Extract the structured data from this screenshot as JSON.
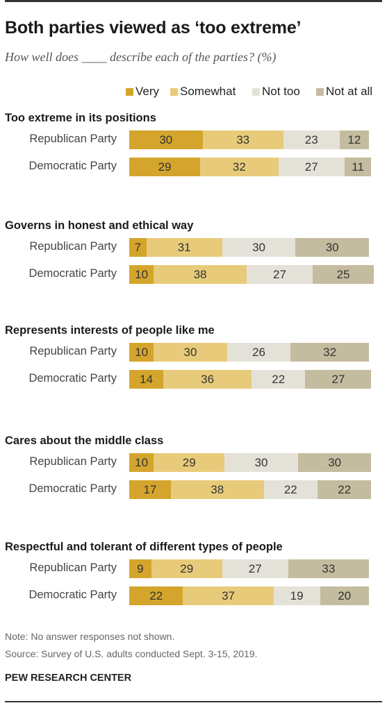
{
  "title": "Both parties viewed as ‘too extreme’",
  "subtitle": "How well does ____ describe each of the parties? (%)",
  "note": "Note: No answer responses not shown.",
  "source": "Source: Survey of U.S. adults conducted Sept. 3-15, 2019.",
  "org": "PEW RESEARCH CENTER",
  "colors": {
    "very": "#d4a52c",
    "somewhat": "#e8cb7a",
    "not_too": "#e4e2d8",
    "not_at_all": "#c4bc9e"
  },
  "chart_data": {
    "type": "bar",
    "orientation": "horizontal",
    "stacked": true,
    "xlim": [
      0,
      100
    ],
    "legend": {
      "position": "top-right",
      "entries": [
        "Very",
        "Somewhat",
        "Not too",
        "Not at all"
      ]
    },
    "series_names": [
      "Very",
      "Somewhat",
      "Not too",
      "Not at all"
    ],
    "groups": [
      {
        "title": "Too extreme in its positions",
        "rows": [
          {
            "label": "Republican Party",
            "values": [
              30,
              33,
              23,
              12
            ]
          },
          {
            "label": "Democratic Party",
            "values": [
              29,
              32,
              27,
              11
            ]
          }
        ]
      },
      {
        "title": "Governs in honest and ethical way",
        "rows": [
          {
            "label": "Republican Party",
            "values": [
              7,
              31,
              30,
              30
            ]
          },
          {
            "label": "Democratic Party",
            "values": [
              10,
              38,
              27,
              25
            ]
          }
        ]
      },
      {
        "title": "Represents interests of people like me",
        "rows": [
          {
            "label": "Republican Party",
            "values": [
              10,
              30,
              26,
              32
            ]
          },
          {
            "label": "Democratic Party",
            "values": [
              14,
              36,
              22,
              27
            ]
          }
        ]
      },
      {
        "title": "Cares about the middle class",
        "rows": [
          {
            "label": "Republican Party",
            "values": [
              10,
              29,
              30,
              30
            ]
          },
          {
            "label": "Democratic Party",
            "values": [
              17,
              38,
              22,
              22
            ]
          }
        ]
      },
      {
        "title": "Respectful and tolerant of different types of people",
        "rows": [
          {
            "label": "Republican Party",
            "values": [
              9,
              29,
              27,
              33
            ]
          },
          {
            "label": "Democratic Party",
            "values": [
              22,
              37,
              19,
              20
            ]
          }
        ]
      }
    ]
  }
}
